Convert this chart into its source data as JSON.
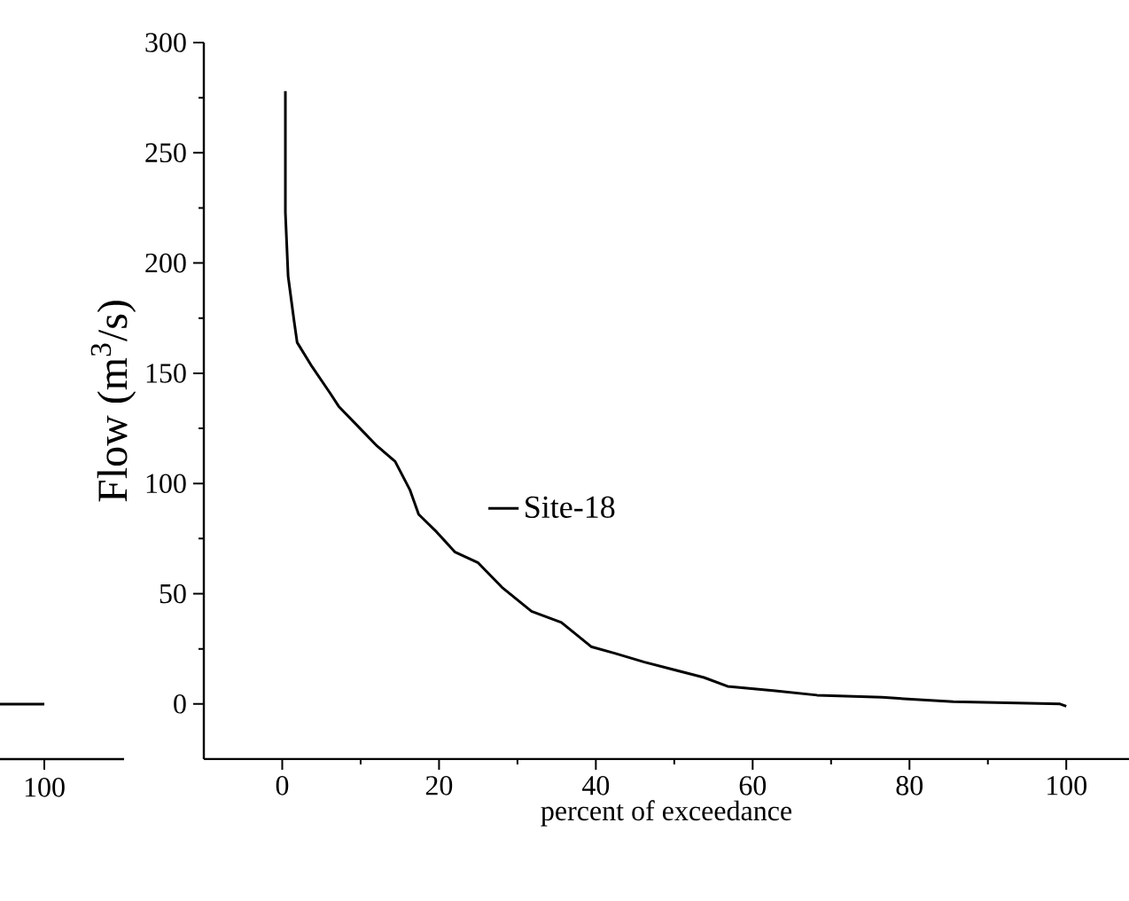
{
  "chart_data": [
    {
      "type": "other",
      "annotations": [
        "100"
      ]
    },
    {
      "type": "line",
      "xlabel": "percent of exceedance",
      "ylabel": "Flow (m$^{3}$/s)",
      "x": [
        0.4,
        0.4,
        0.75,
        1.5,
        1.9,
        3.8,
        6.1,
        7.2,
        9.1,
        12.1,
        14.4,
        16.3,
        17.4,
        19.7,
        22,
        25,
        28,
        31.8,
        35.6,
        39.4,
        42.4,
        46.2,
        53.8,
        56.8,
        62.9,
        68.2,
        76.5,
        85.6,
        99.2,
        100
      ],
      "series": [
        {
          "name": "Site-18",
          "color": "#000000",
          "values": [
            278,
            223,
            194,
            174,
            164,
            153,
            141,
            135,
            128,
            117,
            110,
            97,
            86,
            78,
            69,
            64,
            53,
            42,
            37,
            26,
            23,
            19,
            12,
            8,
            6,
            4,
            3,
            1,
            0,
            -1
          ]
        }
      ],
      "xlim": [
        -10,
        108
      ],
      "ylim": [
        -25,
        300
      ],
      "xticks": [
        0,
        20,
        40,
        60,
        80,
        100
      ],
      "yticks": [
        0,
        50,
        100,
        150,
        200,
        250,
        300
      ],
      "legend": "center"
    }
  ]
}
